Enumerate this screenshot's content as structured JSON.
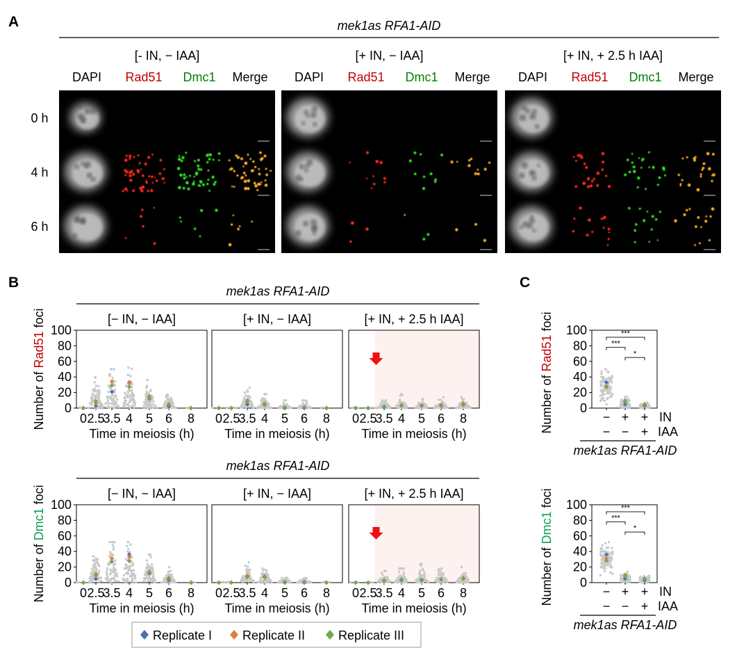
{
  "panel_labels": [
    "A",
    "B",
    "C"
  ],
  "strain": "mek1as RFA1-AID",
  "conditions": [
    "[- IN, − IAA]",
    "[+ IN, − IAA]",
    "[+ IN, + 2.5 h IAA]"
  ],
  "conditions_b": [
    "[− IN, − IAA]",
    "[+ IN, − IAA]",
    "[+ IN, + 2.5 h IAA]"
  ],
  "channels": [
    {
      "label": "DAPI",
      "color": "#000000"
    },
    {
      "label": "Rad51",
      "color": "#c00000"
    },
    {
      "label": "Dmc1",
      "color": "#008000"
    },
    {
      "label": "Merge",
      "color": "#000000"
    }
  ],
  "rows": [
    "0 h",
    "4 h",
    "6 h"
  ],
  "colors": {
    "rad51": "#c00000",
    "dmc1": "#00a050",
    "rep1": "#4a6fb5",
    "rep2": "#e0803c",
    "rep3": "#6fa84f",
    "iaa_shade": "#fdf2f0",
    "arrow": "#ee1111"
  },
  "legend": [
    "Replicate I",
    "Replicate II",
    "Replicate III"
  ],
  "chart_data": [
    {
      "type": "scatter",
      "name": "Rad51 foci over meiosis",
      "ylabel_parts": [
        "Number of ",
        "Rad51",
        " foci"
      ],
      "xlabel": "Time in meiosis (h)",
      "categories": [
        "0",
        "2.5",
        "3.5",
        "4",
        "5",
        "6",
        "8"
      ],
      "ylim": [
        0,
        100
      ],
      "yticks": [
        "0",
        "20",
        "40",
        "60",
        "80",
        "100"
      ],
      "panels": [
        {
          "condition": "[− IN, − IAA]",
          "spread": [
            0.5,
            16,
            22,
            22,
            13,
            6,
            0.5
          ],
          "max": [
            1,
            40,
            50,
            52,
            36,
            18,
            1
          ],
          "means": {
            "rep1": [
              0,
              3,
              21,
              33,
              12,
              2,
              0
            ],
            "rep2": [
              0,
              6,
              34,
              32,
              13,
              5,
              0
            ],
            "rep3": [
              0,
              9,
              29,
              27,
              15,
              4,
              0
            ]
          }
        },
        {
          "condition": "[+ IN, − IAA]",
          "spread": [
            0.5,
            0.5,
            9,
            6,
            2,
            2,
            0.5
          ],
          "max": [
            1,
            1,
            33,
            18,
            10,
            10,
            1
          ],
          "means": {
            "rep1": [
              0,
              0,
              5,
              5,
              0,
              0,
              0
            ],
            "rep2": [
              0,
              0,
              10,
              6,
              1,
              1,
              0
            ],
            "rep3": [
              0,
              0,
              8,
              4,
              1,
              1,
              0
            ]
          }
        },
        {
          "condition": "[+ IN, + 2.5 h IAA]",
          "iaa_from": 2.5,
          "spread": [
            0.5,
            0.5,
            3,
            4,
            4,
            4,
            4
          ],
          "max": [
            1,
            1,
            10,
            18,
            12,
            14,
            14
          ],
          "means": {
            "rep1": [
              0,
              0,
              1,
              3,
              3,
              4,
              5
            ],
            "rep2": [
              0,
              0,
              2,
              4,
              4,
              4,
              6
            ],
            "rep3": [
              0,
              0,
              2,
              3,
              3,
              3,
              4
            ]
          }
        }
      ]
    },
    {
      "type": "scatter",
      "name": "Dmc1 foci over meiosis",
      "ylabel_parts": [
        "Number of ",
        "Dmc1",
        " foci"
      ],
      "xlabel": "Time in meiosis (h)",
      "categories": [
        "0",
        "2.5",
        "3.5",
        "4",
        "5",
        "6",
        "8"
      ],
      "ylim": [
        0,
        100
      ],
      "yticks": [
        "0",
        "20",
        "40",
        "60",
        "80",
        "100"
      ],
      "panels": [
        {
          "condition": "[− IN, − IAA]",
          "spread": [
            0.5,
            16,
            22,
            22,
            13,
            6,
            0.5
          ],
          "max": [
            1,
            36,
            52,
            52,
            36,
            20,
            1
          ],
          "means": {
            "rep1": [
              0,
              5,
              27,
              36,
              12,
              3,
              0
            ],
            "rep2": [
              0,
              11,
              31,
              33,
              14,
              6,
              0
            ],
            "rep3": [
              0,
              9,
              27,
              28,
              13,
              5,
              0
            ]
          }
        },
        {
          "condition": "[+ IN, − IAA]",
          "spread": [
            0.5,
            0.5,
            9,
            7,
            2,
            2,
            0.5
          ],
          "max": [
            1,
            1,
            26,
            18,
            6,
            6,
            1
          ],
          "means": {
            "rep1": [
              0,
              0,
              8,
              7,
              0,
              0,
              0
            ],
            "rep2": [
              0,
              0,
              9,
              6,
              1,
              1,
              0
            ],
            "rep3": [
              0,
              0,
              7,
              8,
              1,
              1,
              0
            ]
          }
        },
        {
          "condition": "[+ IN, + 2.5 h IAA]",
          "iaa_from": 2.5,
          "spread": [
            0.5,
            0.5,
            4,
            5,
            6,
            6,
            6
          ],
          "max": [
            1,
            1,
            15,
            18,
            24,
            18,
            20
          ],
          "means": {
            "rep1": [
              0,
              0,
              2,
              3,
              3,
              4,
              5
            ],
            "rep2": [
              0,
              0,
              3,
              4,
              4,
              4,
              5
            ],
            "rep3": [
              0,
              0,
              2,
              4,
              4,
              4,
              6
            ]
          }
        }
      ]
    },
    {
      "type": "scatter",
      "name": "Rad51 foci comparison",
      "ylabel_parts": [
        "Number of ",
        "Rad51",
        " foci"
      ],
      "ylim": [
        0,
        100
      ],
      "yticks": [
        "0",
        "20",
        "40",
        "60",
        "80",
        "100"
      ],
      "row_labels": [
        "IN",
        "IAA"
      ],
      "groups": [
        {
          "IN": "−",
          "IAA": "−"
        },
        {
          "IN": "+",
          "IAA": "−"
        },
        {
          "IN": "+",
          "IAA": "+"
        }
      ],
      "spread": [
        22,
        8,
        4
      ],
      "max": [
        50,
        26,
        16
      ],
      "means": {
        "rep1": [
          33,
          5,
          3
        ],
        "rep2": [
          28,
          10,
          5
        ],
        "rep3": [
          27,
          8,
          4
        ]
      },
      "significance": [
        {
          "from": 0,
          "to": 2,
          "label": "***",
          "y": 91
        },
        {
          "from": 0,
          "to": 1,
          "label": "***",
          "y": 78
        },
        {
          "from": 1,
          "to": 2,
          "label": "*",
          "y": 65
        }
      ]
    },
    {
      "type": "scatter",
      "name": "Dmc1 foci comparison",
      "ylabel_parts": [
        "Number of ",
        "Dmc1",
        " foci"
      ],
      "ylim": [
        0,
        100
      ],
      "yticks": [
        "0",
        "20",
        "40",
        "60",
        "80",
        "100"
      ],
      "row_labels": [
        "IN",
        "IAA"
      ],
      "groups": [
        {
          "IN": "−",
          "IAA": "−"
        },
        {
          "IN": "+",
          "IAA": "−"
        },
        {
          "IN": "+",
          "IAA": "+"
        }
      ],
      "spread": [
        20,
        8,
        6
      ],
      "max": [
        52,
        24,
        20
      ],
      "means": {
        "rep1": [
          36,
          5,
          3
        ],
        "rep2": [
          31,
          10,
          5
        ],
        "rep3": [
          28,
          8,
          5
        ]
      },
      "significance": [
        {
          "from": 0,
          "to": 2,
          "label": "***",
          "y": 91
        },
        {
          "from": 0,
          "to": 1,
          "label": "***",
          "y": 78
        },
        {
          "from": 1,
          "to": 2,
          "label": "*",
          "y": 65
        }
      ]
    }
  ]
}
